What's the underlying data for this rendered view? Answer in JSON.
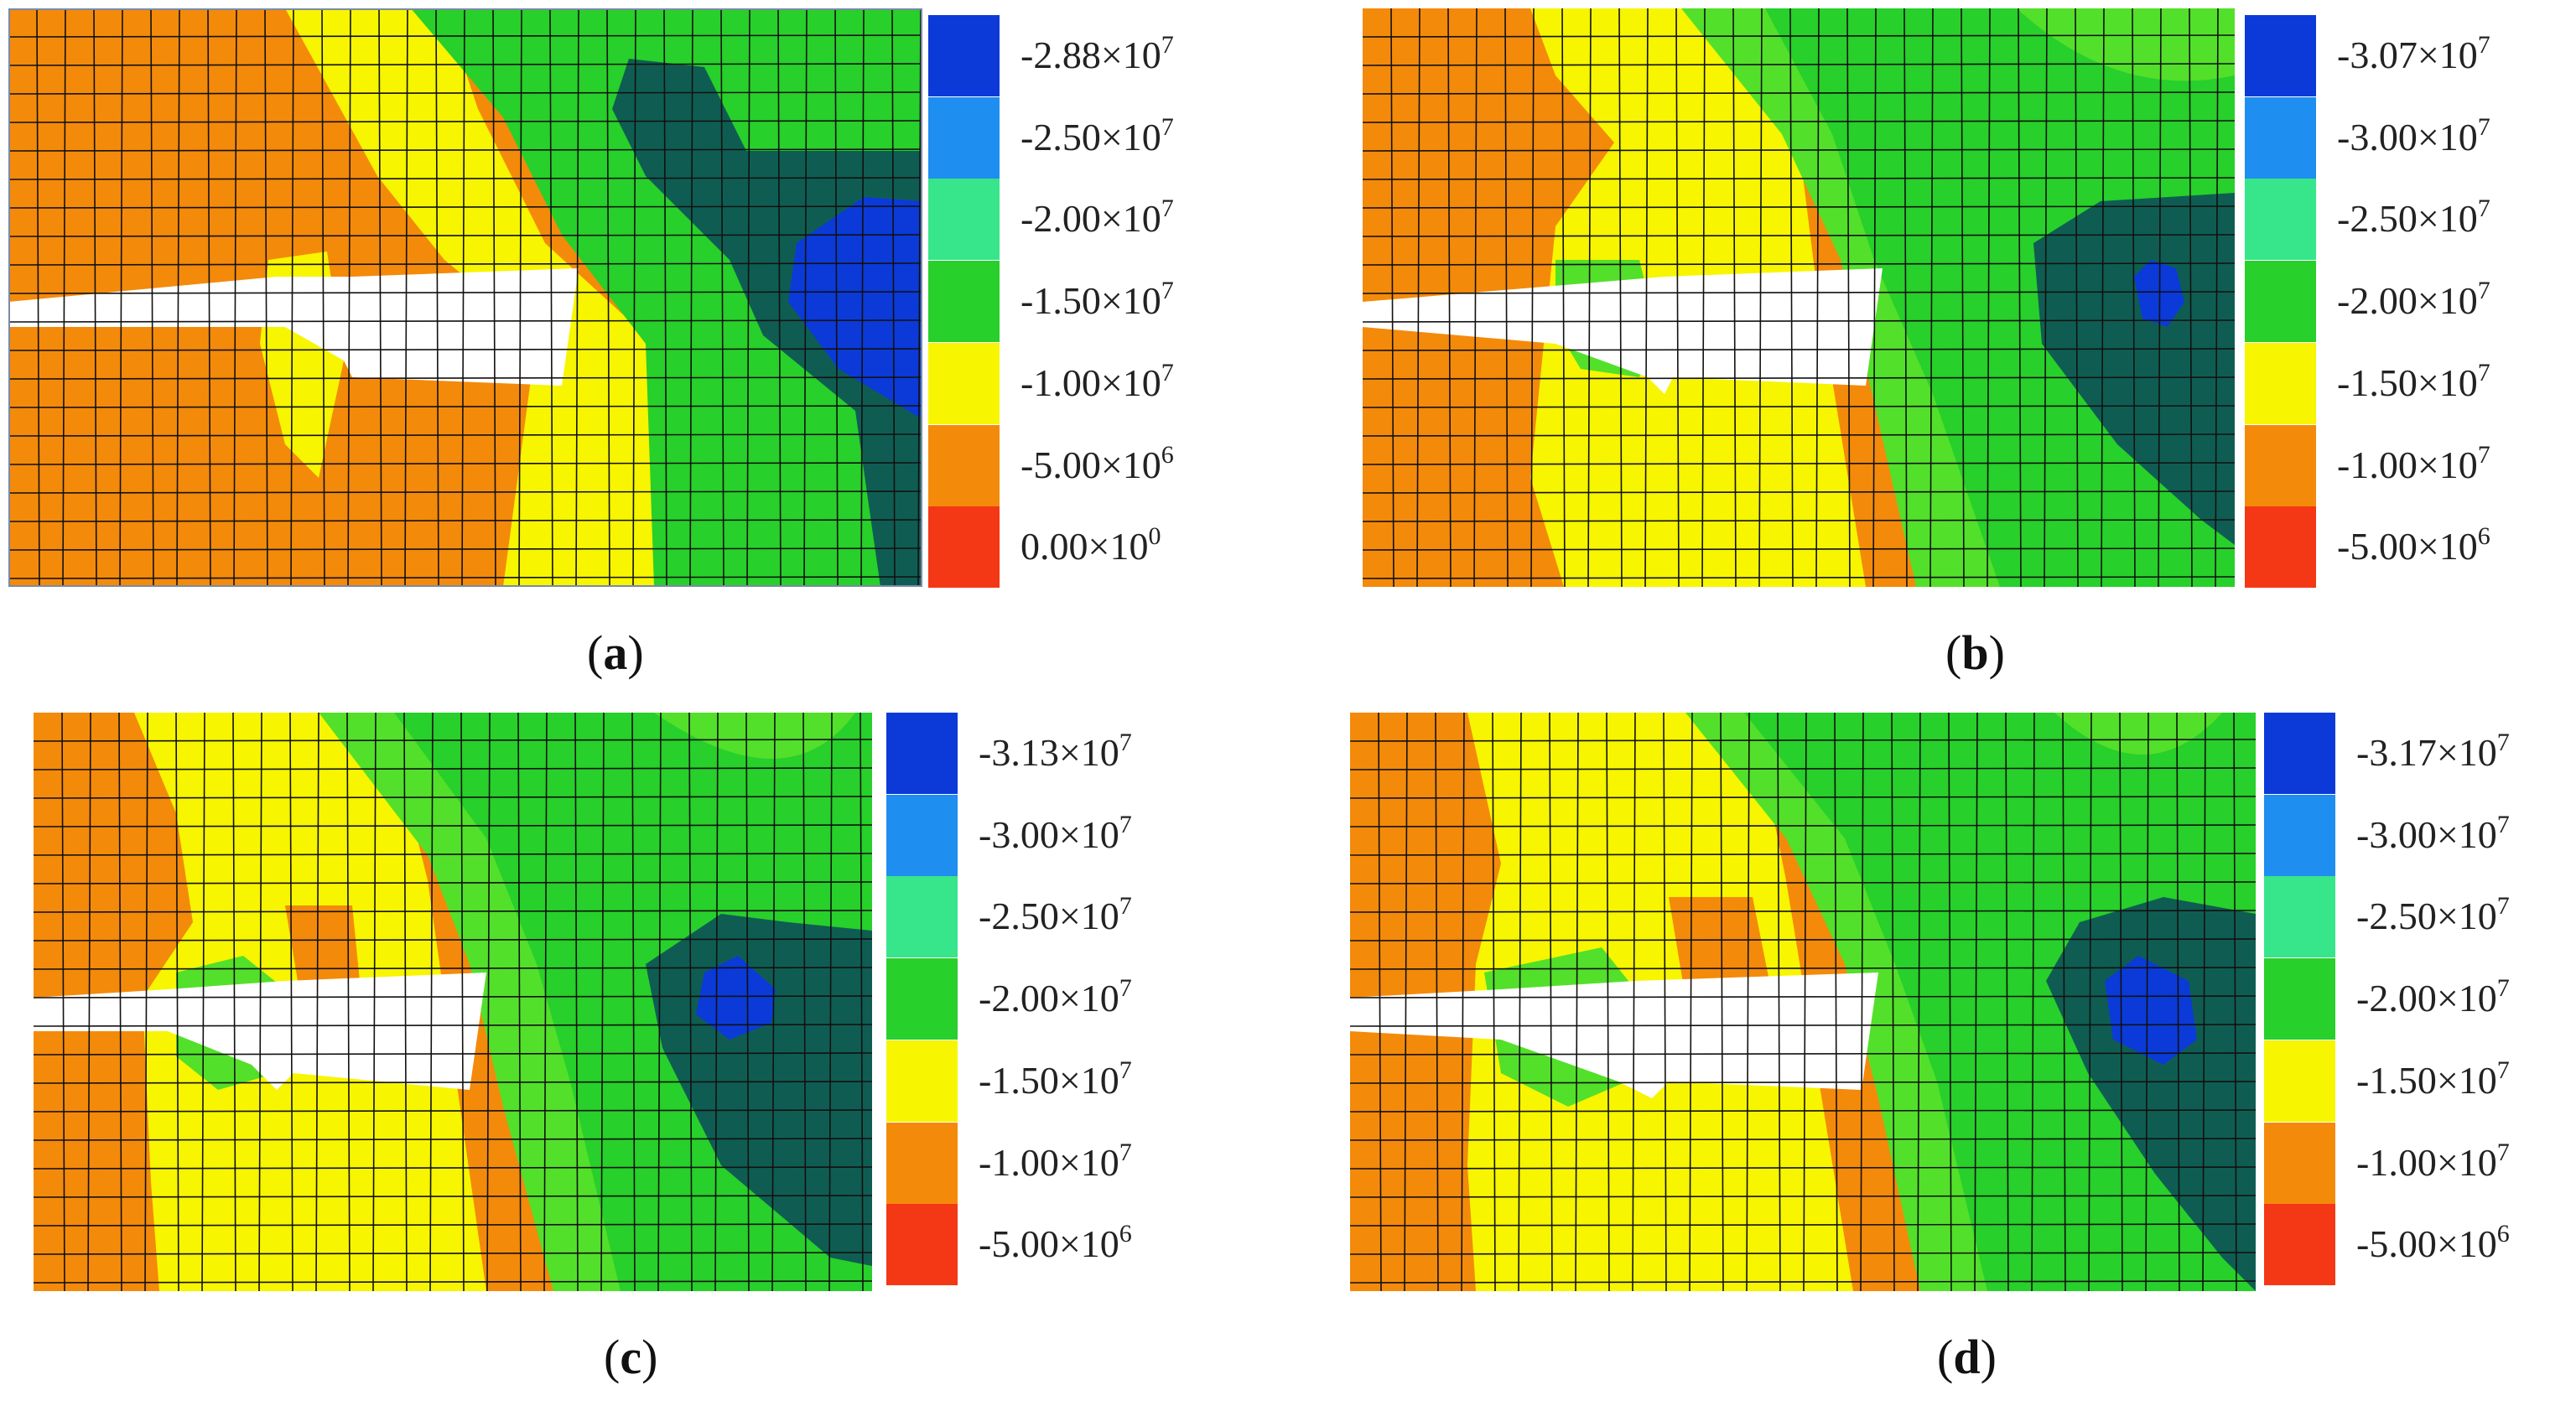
{
  "figure": {
    "colors": [
      "#0b3ad8",
      "#1e8ef0",
      "#37e58a",
      "#27d02a",
      "#f7f500",
      "#f48a0a",
      "#f43714"
    ],
    "contour_colors": {
      "orange": "#f48a0a",
      "yellow": "#f7f500",
      "light_green": "#53e02a",
      "green": "#27d02a",
      "dark_teal": "#0f5d52",
      "blue": "#0b3ad8",
      "red": "#f43714"
    }
  },
  "chart_data": [
    {
      "type": "heatmap",
      "caption_letter": "a",
      "legend_levels": [
        {
          "mantissa": "-2.88",
          "exponent": "7",
          "value": -28800000
        },
        {
          "mantissa": "-2.50",
          "exponent": "7",
          "value": -25000000
        },
        {
          "mantissa": "-2.00",
          "exponent": "7",
          "value": -20000000
        },
        {
          "mantissa": "-1.50",
          "exponent": "7",
          "value": -15000000
        },
        {
          "mantissa": "-1.00",
          "exponent": "7",
          "value": -10000000
        },
        {
          "mantissa": "-5.00",
          "exponent": "6",
          "value": -5000000
        },
        {
          "mantissa": "0.00",
          "exponent": "0",
          "value": 0
        }
      ]
    },
    {
      "type": "heatmap",
      "caption_letter": "b",
      "legend_levels": [
        {
          "mantissa": "-3.07",
          "exponent": "7",
          "value": -30700000
        },
        {
          "mantissa": "-3.00",
          "exponent": "7",
          "value": -30000000
        },
        {
          "mantissa": "-2.50",
          "exponent": "7",
          "value": -25000000
        },
        {
          "mantissa": "-2.00",
          "exponent": "7",
          "value": -20000000
        },
        {
          "mantissa": "-1.50",
          "exponent": "7",
          "value": -15000000
        },
        {
          "mantissa": "-1.00",
          "exponent": "7",
          "value": -10000000
        },
        {
          "mantissa": "-5.00",
          "exponent": "6",
          "value": -5000000
        }
      ]
    },
    {
      "type": "heatmap",
      "caption_letter": "c",
      "legend_levels": [
        {
          "mantissa": "-3.13",
          "exponent": "7",
          "value": -31300000
        },
        {
          "mantissa": "-3.00",
          "exponent": "7",
          "value": -30000000
        },
        {
          "mantissa": "-2.50",
          "exponent": "7",
          "value": -25000000
        },
        {
          "mantissa": "-2.00",
          "exponent": "7",
          "value": -20000000
        },
        {
          "mantissa": "-1.50",
          "exponent": "7",
          "value": -15000000
        },
        {
          "mantissa": "-1.00",
          "exponent": "7",
          "value": -10000000
        },
        {
          "mantissa": "-5.00",
          "exponent": "6",
          "value": -5000000
        }
      ]
    },
    {
      "type": "heatmap",
      "caption_letter": "d",
      "legend_levels": [
        {
          "mantissa": "-3.17",
          "exponent": "7",
          "value": -31700000
        },
        {
          "mantissa": "-3.00",
          "exponent": "7",
          "value": -30000000
        },
        {
          "mantissa": "-2.50",
          "exponent": "7",
          "value": -25000000
        },
        {
          "mantissa": "-2.00",
          "exponent": "7",
          "value": -20000000
        },
        {
          "mantissa": "-1.50",
          "exponent": "7",
          "value": -15000000
        },
        {
          "mantissa": "-1.00",
          "exponent": "7",
          "value": -10000000
        },
        {
          "mantissa": "-5.00",
          "exponent": "6",
          "value": -5000000
        }
      ]
    }
  ]
}
